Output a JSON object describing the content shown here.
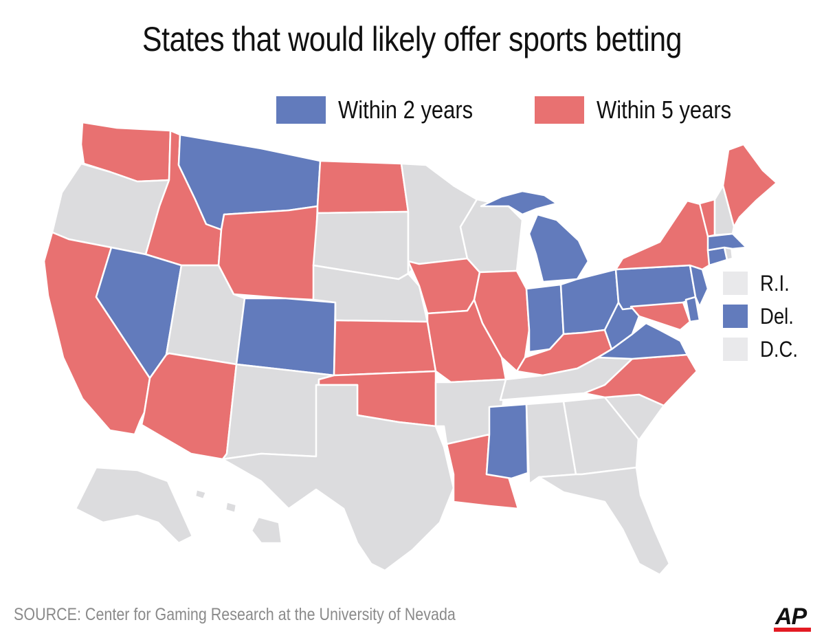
{
  "title": "States that would likely offer sports betting",
  "legend": {
    "within_2": {
      "label": "Within 2 years",
      "color": "#627bbc"
    },
    "within_5": {
      "label": "Within 5 years",
      "color": "#e87171"
    },
    "none_color": "#dcdcde"
  },
  "small_states": [
    {
      "label": "R.I.",
      "status": "none"
    },
    {
      "label": "Del.",
      "status": "within_2"
    },
    {
      "label": "D.C.",
      "status": "none"
    }
  ],
  "source": "SOURCE: Center for Gaming Research at the University of Nevada",
  "credit": "AP",
  "states": {
    "WA": "within_5",
    "OR": "none",
    "CA": "within_5",
    "ID": "within_5",
    "NV": "within_2",
    "MT": "within_2",
    "WY": "within_5",
    "UT": "none",
    "AZ": "within_5",
    "CO": "within_2",
    "NM": "none",
    "ND": "within_5",
    "SD": "none",
    "NE": "none",
    "KS": "within_5",
    "OK": "within_5",
    "TX": "none",
    "MN": "none",
    "IA": "within_5",
    "MO": "within_5",
    "AR": "none",
    "LA": "within_5",
    "WI": "none",
    "IL": "within_5",
    "MI": "within_2",
    "IN": "within_2",
    "OH": "within_2",
    "KY": "within_5",
    "TN": "none",
    "MS": "within_2",
    "AL": "none",
    "GA": "none",
    "FL": "none",
    "SC": "none",
    "NC": "within_5",
    "VA": "within_2",
    "WV": "within_2",
    "PA": "within_2",
    "NY": "within_5",
    "NJ": "within_2",
    "MD": "within_5",
    "DE": "within_2",
    "CT": "within_2",
    "MA": "within_2",
    "RI": "none",
    "VT": "within_5",
    "NH": "none",
    "ME": "within_5",
    "AK": "none",
    "HI": "none"
  }
}
